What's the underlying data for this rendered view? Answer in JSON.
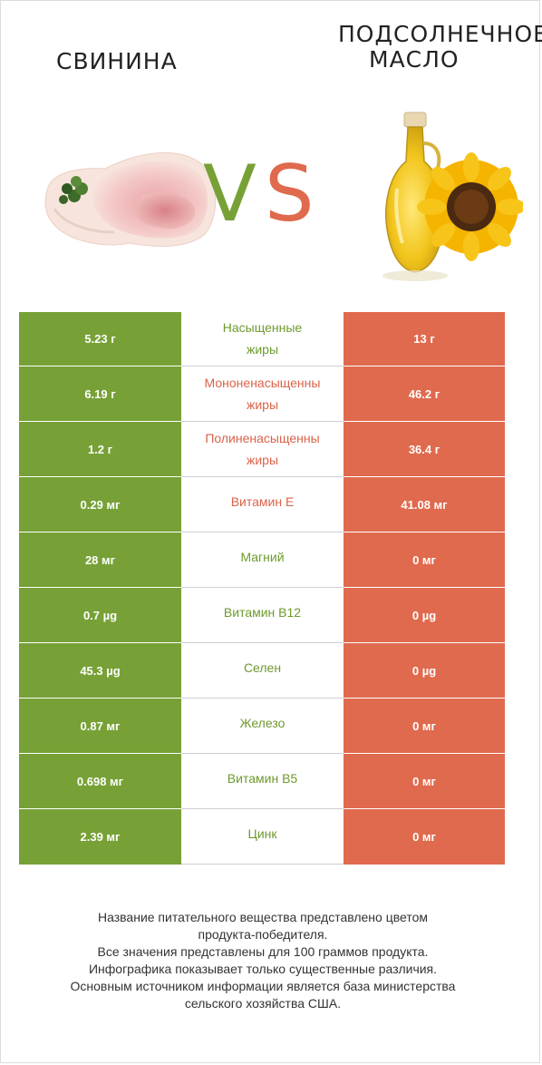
{
  "header": {
    "left_title": "СВИНИНА",
    "right_title_line1": "ПОДСОЛНЕЧНОЕ",
    "right_title_line2": "МАСЛО",
    "vs_v": "V",
    "vs_s": "S"
  },
  "colors": {
    "left_product": "#77a136",
    "right_product": "#e06a4e"
  },
  "rows": [
    {
      "left": "5.23 г",
      "label_line1": "Насыщенные",
      "label_line2": "жиры",
      "right": "13 г",
      "winner": "left"
    },
    {
      "left": "6.19 г",
      "label_line1": "Мононенасыщенны",
      "label_line2": "жиры",
      "right": "46.2 г",
      "winner": "right"
    },
    {
      "left": "1.2 г",
      "label_line1": "Полиненасыщенны",
      "label_line2": "жиры",
      "right": "36.4 г",
      "winner": "right"
    },
    {
      "left": "0.29 мг",
      "label_line1": "Витамин E",
      "label_line2": "",
      "right": "41.08 мг",
      "winner": "right"
    },
    {
      "left": "28 мг",
      "label_line1": "Магний",
      "label_line2": "",
      "right": "0 мг",
      "winner": "left"
    },
    {
      "left": "0.7 µg",
      "label_line1": "Витамин B12",
      "label_line2": "",
      "right": "0 µg",
      "winner": "left"
    },
    {
      "left": "45.3 µg",
      "label_line1": "Селен",
      "label_line2": "",
      "right": "0 µg",
      "winner": "left"
    },
    {
      "left": "0.87 мг",
      "label_line1": "Железо",
      "label_line2": "",
      "right": "0 мг",
      "winner": "left"
    },
    {
      "left": "0.698 мг",
      "label_line1": "Витамин B5",
      "label_line2": "",
      "right": "0 мг",
      "winner": "left"
    },
    {
      "left": "2.39 мг",
      "label_line1": "Цинк",
      "label_line2": "",
      "right": "0 мг",
      "winner": "left"
    }
  ],
  "footer": {
    "line1": "Название питательного вещества представлено цветом",
    "line2": "продукта-победителя.",
    "line3": "Все значения представлены для 100 граммов продукта.",
    "line4": "Инфографика показывает только существенные различия.",
    "line5": "Основным источником информации является база министерства",
    "line6": "сельского хозяйства США."
  },
  "images": {
    "left": "pork-image",
    "right": "sunflower-oil-image"
  }
}
